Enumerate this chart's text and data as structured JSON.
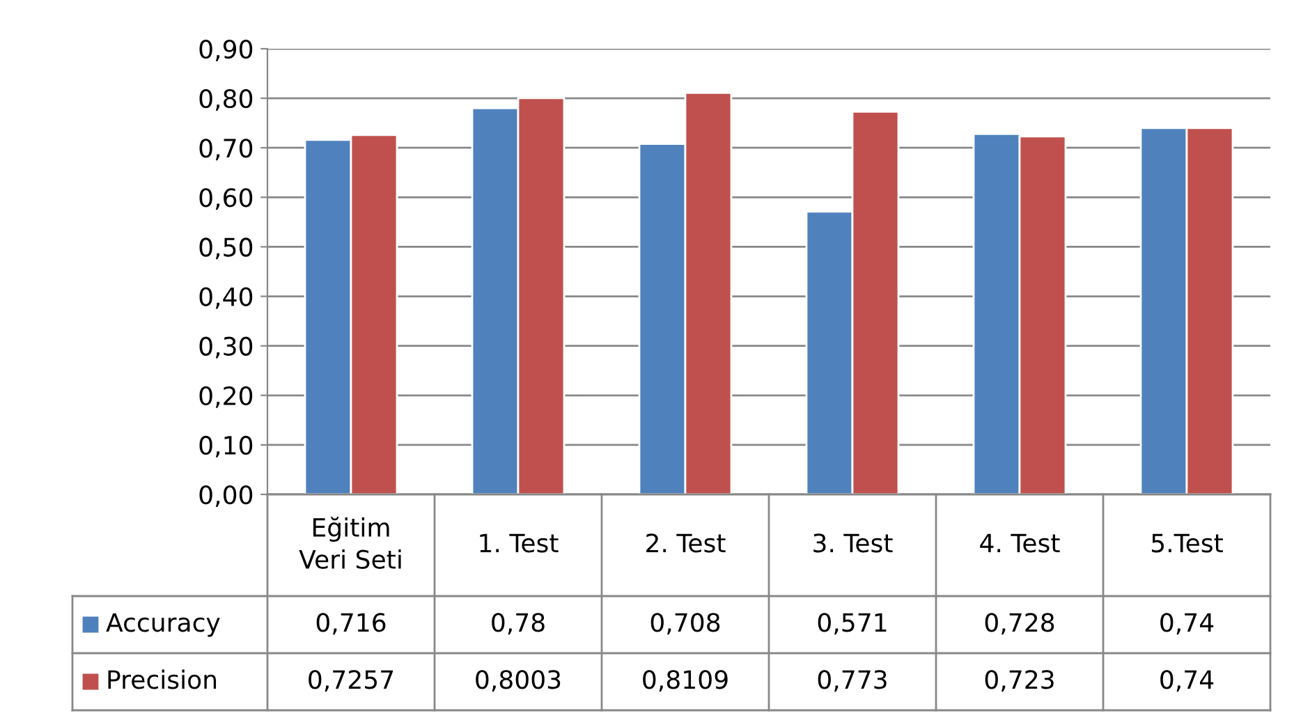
{
  "chart_data": {
    "type": "bar",
    "categories": [
      "Eğitim\nVeri Seti",
      "1. Test",
      "2. Test",
      "3. Test",
      "4. Test",
      "5.Test"
    ],
    "series": [
      {
        "name": "Accuracy",
        "color": "#4f81bd",
        "values": [
          0.716,
          0.78,
          0.708,
          0.571,
          0.728,
          0.74
        ],
        "value_labels": [
          "0,716",
          "0,78",
          "0,708",
          "0,571",
          "0,728",
          "0,74"
        ]
      },
      {
        "name": "Precision",
        "color": "#c0504d",
        "values": [
          0.7257,
          0.8003,
          0.8109,
          0.773,
          0.723,
          0.74
        ],
        "value_labels": [
          "0,7257",
          "0,8003",
          "0,8109",
          "0,773",
          "0,723",
          "0,74"
        ]
      }
    ],
    "ylim": [
      0,
      0.9
    ],
    "yticks": [
      {
        "value": 0,
        "label": "0,00"
      },
      {
        "value": 0.1,
        "label": "0,10"
      },
      {
        "value": 0.2,
        "label": "0,20"
      },
      {
        "value": 0.3,
        "label": "0,30"
      },
      {
        "value": 0.4,
        "label": "0,40"
      },
      {
        "value": 0.5,
        "label": "0,50"
      },
      {
        "value": 0.6,
        "label": "0,60"
      },
      {
        "value": 0.7,
        "label": "0,70"
      },
      {
        "value": 0.8,
        "label": "0,80"
      },
      {
        "value": 0.9,
        "label": "0,90"
      }
    ],
    "grid": "y",
    "legend": "bottom"
  }
}
